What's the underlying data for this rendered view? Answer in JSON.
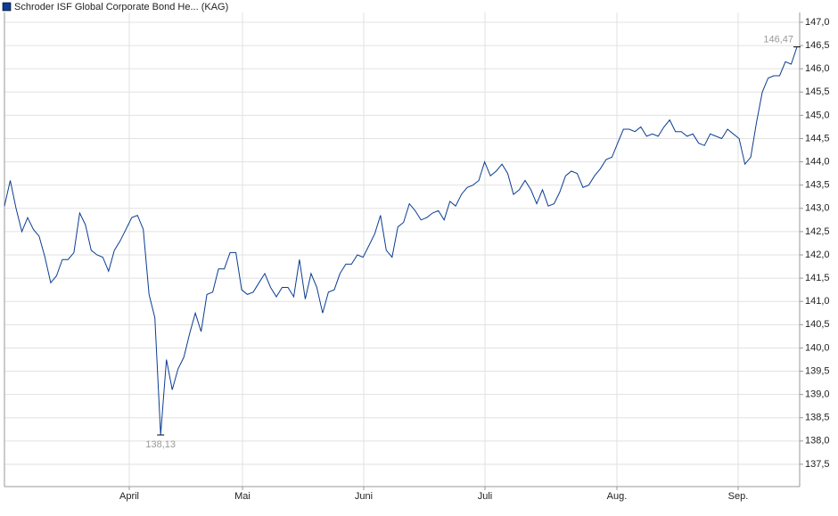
{
  "chart_data": {
    "type": "line",
    "title": "Schroder ISF Global Corporate Bond He... (KAG)",
    "series": [
      {
        "name": "Schroder ISF Global Corporate Bond He... (KAG)",
        "color": "#0b3d91",
        "values": [
          143.05,
          143.6,
          143.0,
          142.5,
          142.8,
          142.55,
          142.4,
          141.95,
          141.4,
          141.55,
          141.9,
          141.9,
          142.05,
          142.9,
          142.65,
          142.1,
          142.0,
          141.95,
          141.65,
          142.1,
          142.3,
          142.55,
          142.8,
          142.85,
          142.55,
          141.15,
          140.65,
          138.13,
          139.75,
          139.1,
          139.55,
          139.8,
          140.3,
          140.75,
          140.35,
          141.15,
          141.2,
          141.7,
          141.7,
          142.05,
          142.05,
          141.25,
          141.15,
          141.2,
          141.4,
          141.6,
          141.3,
          141.1,
          141.3,
          141.3,
          141.1,
          141.9,
          141.05,
          141.6,
          141.3,
          140.75,
          141.2,
          141.25,
          141.6,
          141.8,
          141.8,
          142.0,
          141.95,
          142.2,
          142.45,
          142.85,
          142.1,
          141.95,
          142.6,
          142.7,
          143.1,
          142.95,
          142.75,
          142.8,
          142.9,
          142.95,
          142.75,
          143.15,
          143.05,
          143.3,
          143.45,
          143.5,
          143.6,
          144.0,
          143.7,
          143.8,
          143.95,
          143.75,
          143.3,
          143.4,
          143.6,
          143.4,
          143.1,
          143.4,
          143.05,
          143.1,
          143.35,
          143.7,
          143.8,
          143.75,
          143.45,
          143.5,
          143.7,
          143.85,
          144.05,
          144.1,
          144.4,
          144.7,
          144.7,
          144.65,
          144.75,
          144.55,
          144.6,
          144.55,
          144.75,
          144.9,
          144.65,
          144.65,
          144.55,
          144.6,
          144.4,
          144.35,
          144.6,
          144.55,
          144.5,
          144.7,
          144.6,
          144.5,
          143.95,
          144.1,
          144.85,
          145.5,
          145.8,
          145.85,
          145.85,
          146.15,
          146.1,
          146.47
        ]
      }
    ],
    "xticks": [
      "April",
      "Mai",
      "Juni",
      "Juli",
      "Aug.",
      "Sep."
    ],
    "ylim": [
      137.02,
      147.21
    ],
    "yticks": [
      {
        "value": 137.5,
        "label": "137,5"
      },
      {
        "value": 138.0,
        "label": "138,0"
      },
      {
        "value": 138.5,
        "label": "138,5"
      },
      {
        "value": 139.0,
        "label": "139,0"
      },
      {
        "value": 139.5,
        "label": "139,5"
      },
      {
        "value": 140.0,
        "label": "140,0"
      },
      {
        "value": 140.5,
        "label": "140,5"
      },
      {
        "value": 141.0,
        "label": "141,0"
      },
      {
        "value": 141.5,
        "label": "141,5"
      },
      {
        "value": 142.0,
        "label": "142,0"
      },
      {
        "value": 142.5,
        "label": "142,5"
      },
      {
        "value": 143.0,
        "label": "143,0"
      },
      {
        "value": 143.5,
        "label": "143,5"
      },
      {
        "value": 144.0,
        "label": "144,0"
      },
      {
        "value": 144.5,
        "label": "144,5"
      },
      {
        "value": 145.0,
        "label": "145,0"
      },
      {
        "value": 145.5,
        "label": "145,5"
      },
      {
        "value": 146.0,
        "label": "146,0"
      },
      {
        "value": 146.5,
        "label": "146,5"
      },
      {
        "value": 147.0,
        "label": "147,0"
      }
    ],
    "annotations": [
      {
        "value": 146.47,
        "label": "146,47"
      },
      {
        "value": 138.13,
        "label": "138,13"
      }
    ],
    "grid": true
  }
}
